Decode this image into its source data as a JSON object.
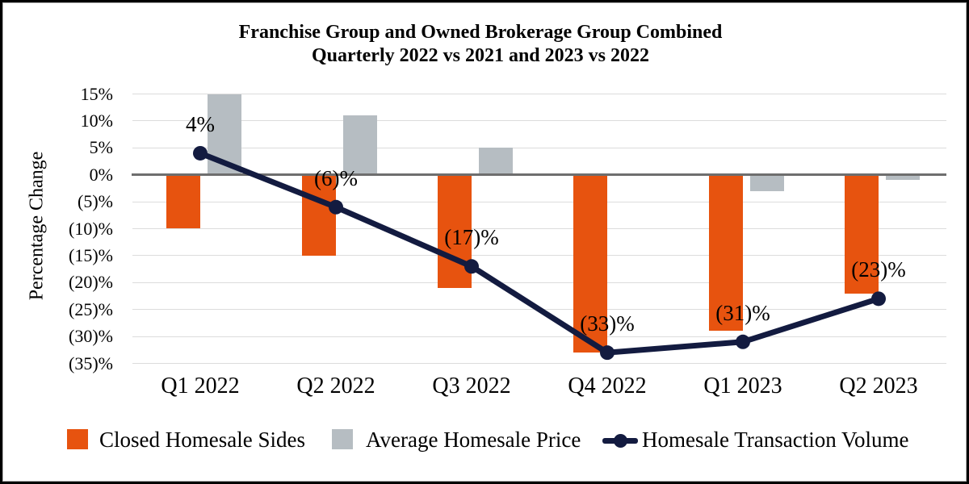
{
  "colors": {
    "orange": "#E7530F",
    "gray": "#B6BDC2",
    "navy": "#131B40",
    "gridline": "#DCDCDC",
    "zero_line": "#6E6E6E",
    "frame": "#000000"
  },
  "chart_data": {
    "type": "combo-bar-line",
    "title_line1": "Franchise Group and Owned Brokerage Group Combined",
    "title_line2": "Quarterly 2022 vs 2021 and 2023 vs 2022",
    "ylabel": "Percentage Change",
    "categories": [
      "Q1 2022",
      "Q2 2022",
      "Q3 2022",
      "Q4 2022",
      "Q1 2023",
      "Q2 2023"
    ],
    "ylim": [
      -35,
      15
    ],
    "ytick_step": 5,
    "yticks": [
      {
        "value": 15,
        "label": "15%"
      },
      {
        "value": 10,
        "label": "10%"
      },
      {
        "value": 5,
        "label": "5%"
      },
      {
        "value": 0,
        "label": "0%"
      },
      {
        "value": -5,
        "label": "(5)%"
      },
      {
        "value": -10,
        "label": "(10)%"
      },
      {
        "value": -15,
        "label": "(15)%"
      },
      {
        "value": -20,
        "label": "(20)%"
      },
      {
        "value": -25,
        "label": "(25)%"
      },
      {
        "value": -30,
        "label": "(30)%"
      },
      {
        "value": -35,
        "label": "(35)%"
      }
    ],
    "grid": "horizontal-only",
    "legend_position": "bottom",
    "series": [
      {
        "name": "Closed Homesale Sides",
        "type": "bar",
        "color_key": "orange",
        "values": [
          -10,
          -15,
          -21,
          -33,
          -29,
          -22
        ]
      },
      {
        "name": "Average Homesale Price",
        "type": "bar",
        "color_key": "gray",
        "values": [
          15,
          11,
          5,
          0,
          -3,
          -1
        ]
      },
      {
        "name": "Homesale Transaction Volume",
        "type": "line",
        "color_key": "navy",
        "values": [
          4,
          -6,
          -17,
          -33,
          -31,
          -23
        ],
        "point_labels": [
          "4%",
          "(6)%",
          "(17)%",
          "(33)%",
          "(31)%",
          "(23)%"
        ]
      }
    ]
  }
}
